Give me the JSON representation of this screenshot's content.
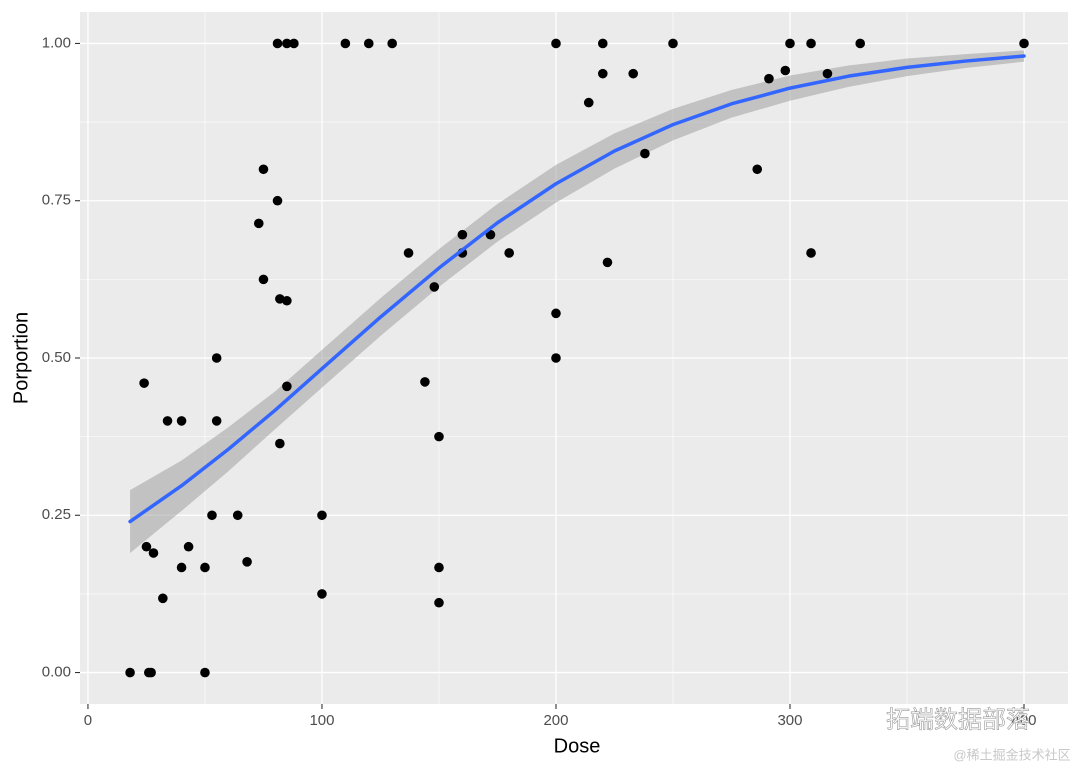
{
  "chart_data": {
    "type": "scatter",
    "x_label": "Dose",
    "y_label": "Porportion",
    "xlim": [
      -3.4,
      418.8
    ],
    "ylim": [
      -0.05,
      1.05
    ],
    "xticks": [
      0,
      100,
      200,
      300,
      400
    ],
    "yticks": [
      {
        "value": 0,
        "label": "0.00"
      },
      {
        "value": 0.25,
        "label": "0.25"
      },
      {
        "value": 0.5,
        "label": "0.50"
      },
      {
        "value": 0.75,
        "label": "0.75"
      },
      {
        "value": 1,
        "label": "1.00"
      }
    ],
    "xminor_ticks": [
      50,
      150,
      250,
      350
    ],
    "yminor_ticks": [
      0.125,
      0.375,
      0.625,
      0.875
    ],
    "grid": true,
    "points": {
      "color": "#000000",
      "x": [
        18,
        24,
        25,
        26,
        27,
        28,
        32,
        34,
        40,
        40,
        43,
        50,
        50,
        53,
        55,
        55,
        64,
        68,
        73,
        75,
        75,
        81,
        81,
        82,
        82,
        85,
        85,
        85,
        88,
        100,
        100,
        110,
        120,
        130,
        137,
        144,
        148,
        150,
        150,
        150,
        160,
        160,
        172,
        180,
        200,
        200,
        200,
        214,
        220,
        220,
        222,
        233,
        238,
        250,
        286,
        291,
        298,
        300,
        309,
        309,
        316,
        330,
        400
      ],
      "y": [
        0,
        0.46,
        0.2,
        0,
        0,
        0.19,
        0.118,
        0.4,
        0.4,
        0.167,
        0.2,
        0.167,
        0,
        0.25,
        0.5,
        0.4,
        0.25,
        0.176,
        0.714,
        0.8,
        0.625,
        1,
        0.75,
        0.594,
        0.364,
        1,
        0.591,
        0.455,
        1,
        0.25,
        0.125,
        1,
        1,
        1,
        0.667,
        0.462,
        0.613,
        0.375,
        0.167,
        0.111,
        0.696,
        0.667,
        0.696,
        0.667,
        1,
        0.571,
        0.5,
        0.906,
        1,
        0.952,
        0.652,
        0.952,
        0.825,
        1,
        0.8,
        0.944,
        0.957,
        1,
        1,
        0.667,
        0.952,
        1,
        1
      ]
    },
    "fit": {
      "color": "#3366ff",
      "band_color": "#999999",
      "x": [
        18,
        40,
        60,
        80,
        100,
        125,
        150,
        175,
        200,
        225,
        250,
        275,
        300,
        325,
        350,
        375,
        400
      ],
      "values": [
        0.24,
        0.297,
        0.355,
        0.417,
        0.483,
        0.565,
        0.643,
        0.715,
        0.777,
        0.829,
        0.871,
        0.904,
        0.929,
        0.948,
        0.962,
        0.972,
        0.98
      ],
      "lower": [
        0.19,
        0.257,
        0.32,
        0.387,
        0.453,
        0.535,
        0.613,
        0.685,
        0.747,
        0.801,
        0.846,
        0.882,
        0.909,
        0.931,
        0.948,
        0.961,
        0.971
      ],
      "upper": [
        0.29,
        0.337,
        0.39,
        0.447,
        0.513,
        0.595,
        0.673,
        0.745,
        0.807,
        0.857,
        0.896,
        0.926,
        0.949,
        0.965,
        0.976,
        0.983,
        0.989
      ]
    },
    "watermarks": [
      "拓端数据部落",
      "@稀土掘金技术社区"
    ]
  }
}
